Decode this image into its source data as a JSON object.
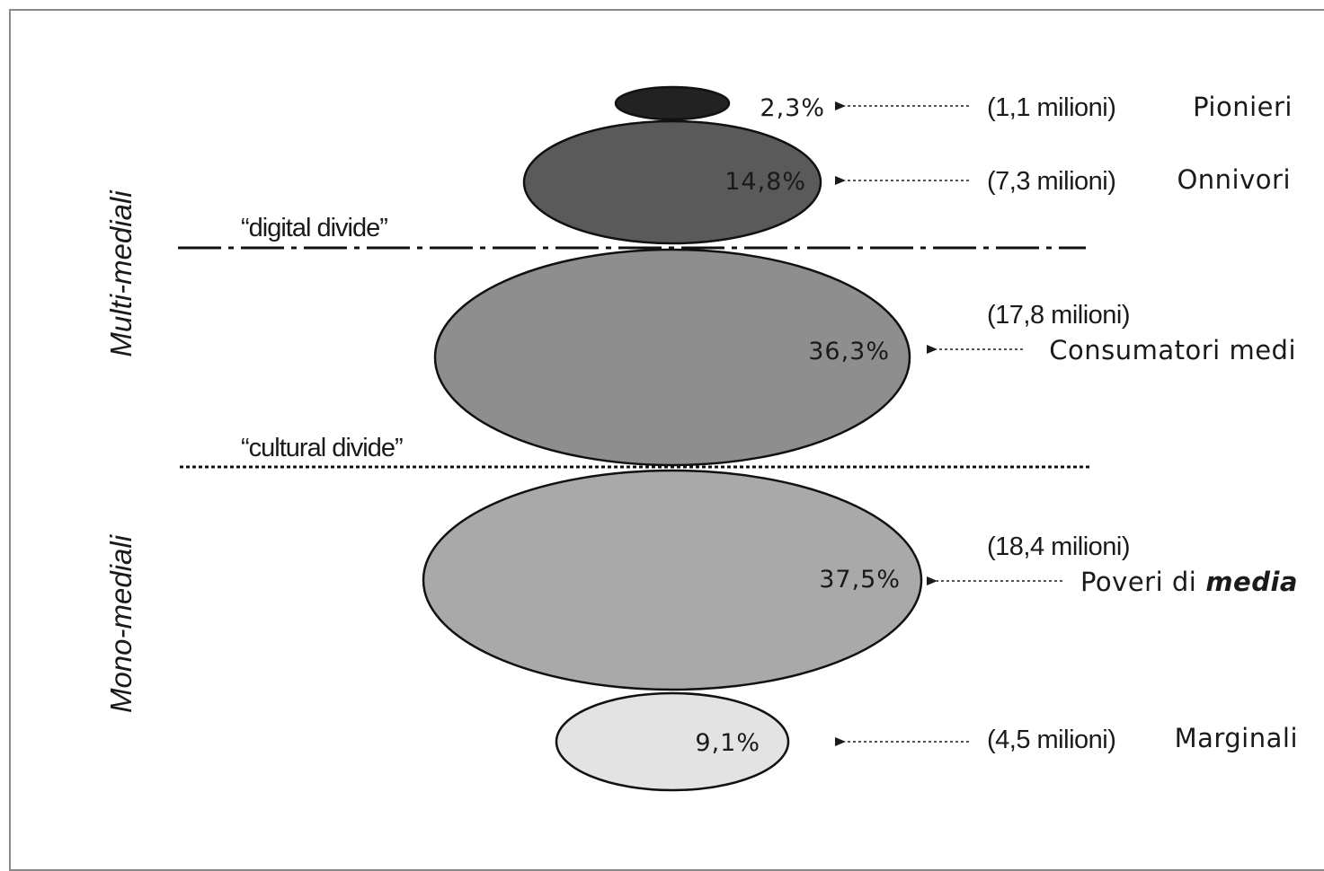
{
  "groups": [
    {
      "label": "Pionieri",
      "count": "(1,1 milioni)",
      "percent": "2,3%",
      "fill": "#222222"
    },
    {
      "label": "Onnivori",
      "count": "(7,3 milioni)",
      "percent": "14,8%",
      "fill": "#5a5a5a"
    },
    {
      "label": "Consumatori medi",
      "count": "(17,8 milioni)",
      "percent": "36,3%",
      "fill": "#8e8e8e"
    },
    {
      "label_prefix": "Poveri di",
      "label_emph": "media",
      "count": "(18,4 milioni)",
      "percent": "37,5%",
      "fill": "#a9a9a9"
    },
    {
      "label": "Marginali",
      "count": "(4,5 milioni)",
      "percent": "9,1%",
      "fill": "#e3e3e3"
    }
  ],
  "dividers": {
    "digital": "“digital divide”",
    "cultural": "“cultural divide”"
  },
  "side_labels": {
    "top": "Multi-mediali",
    "bottom": "Mono-mediali"
  }
}
